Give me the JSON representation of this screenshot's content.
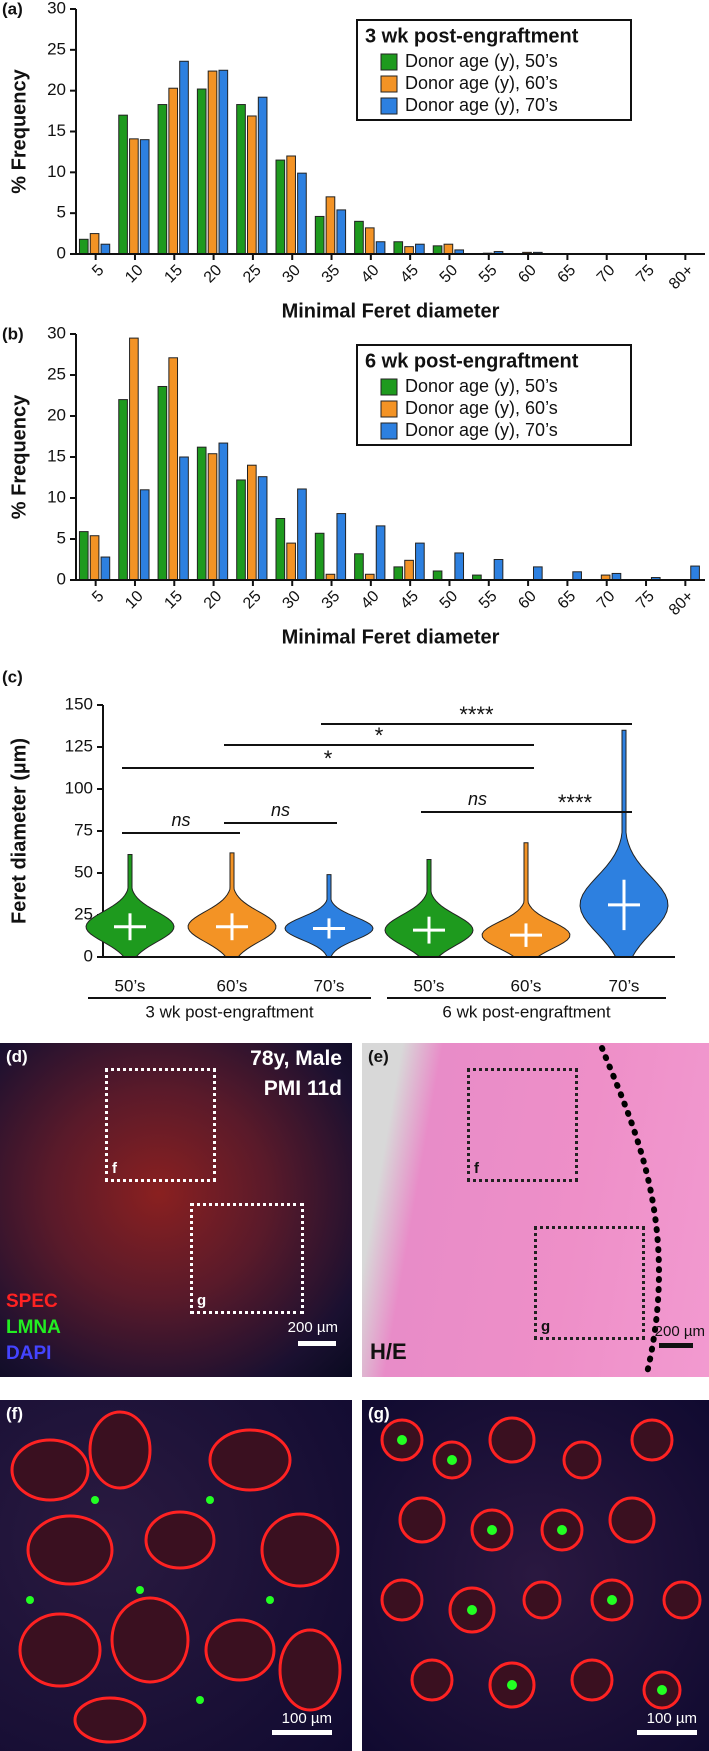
{
  "chart_data": [
    {
      "type": "bar",
      "panel": "(a)",
      "ylabel": "% Frequency",
      "xlabel": "Minimal Feret diameter",
      "legend_title": "3 wk post-engraftment",
      "categories": [
        "5",
        "10",
        "15",
        "20",
        "25",
        "30",
        "35",
        "40",
        "45",
        "50",
        "55",
        "60",
        "65",
        "70",
        "75",
        "80+"
      ],
      "series": [
        {
          "name": "Donor age (y), 50’s",
          "color": "#1e9a1e",
          "values": [
            1.8,
            17,
            18.3,
            20.2,
            18.3,
            11.5,
            4.6,
            4,
            1.5,
            1,
            0,
            0,
            0,
            0,
            0,
            0
          ]
        },
        {
          "name": "Donor age (y), 60’s",
          "color": "#f39325",
          "values": [
            2.5,
            14.1,
            20.3,
            22.4,
            16.9,
            12,
            7,
            3.2,
            0.9,
            1.2,
            0.1,
            0.2,
            0,
            0,
            0,
            0
          ]
        },
        {
          "name": "Donor age (y), 70’s",
          "color": "#2d80e0",
          "values": [
            1.2,
            14,
            23.6,
            22.5,
            19.2,
            9.9,
            5.4,
            1.5,
            1.2,
            0.5,
            0.3,
            0.2,
            0,
            0,
            0,
            0
          ]
        }
      ],
      "ylim": [
        0,
        30
      ],
      "yticks": [
        0,
        5,
        10,
        15,
        20,
        25,
        30
      ]
    },
    {
      "type": "bar",
      "panel": "(b)",
      "ylabel": "% Frequency",
      "xlabel": "Minimal Feret diameter",
      "legend_title": "6 wk post-engraftment",
      "categories": [
        "5",
        "10",
        "15",
        "20",
        "25",
        "30",
        "35",
        "40",
        "45",
        "50",
        "55",
        "60",
        "65",
        "70",
        "75",
        "80+"
      ],
      "series": [
        {
          "name": "Donor age (y), 50’s",
          "color": "#1e9a1e",
          "values": [
            5.9,
            22,
            23.6,
            16.2,
            12.2,
            7.5,
            5.7,
            3.2,
            1.6,
            1.1,
            0.6,
            0,
            0,
            0,
            0,
            0
          ]
        },
        {
          "name": "Donor age (y), 60’s",
          "color": "#f39325",
          "values": [
            5.4,
            29.5,
            27.1,
            15.4,
            14,
            4.5,
            0.7,
            0.7,
            2.4,
            0,
            0,
            0,
            0,
            0.6,
            0,
            0
          ]
        },
        {
          "name": "Donor age (y), 70’s",
          "color": "#2d80e0",
          "values": [
            2.8,
            11,
            15,
            16.7,
            12.6,
            11.1,
            8.1,
            6.6,
            4.5,
            3.3,
            2.5,
            1.6,
            1,
            0.8,
            0.3,
            1.7
          ]
        }
      ],
      "ylim": [
        0,
        30
      ],
      "yticks": [
        0,
        5,
        10,
        15,
        20,
        25,
        30
      ]
    },
    {
      "type": "dot",
      "panel": "(c)",
      "ylabel": "Feret diameter (µm)",
      "categories": [
        "50’s",
        "60’s",
        "70’s",
        "50’s",
        "60’s",
        "70’s"
      ],
      "group_labels": [
        "3 wk post-engraftment",
        "6 wk post-engraftment"
      ],
      "colors": [
        "#1e9a1e",
        "#f39325",
        "#2d80e0",
        "#1e9a1e",
        "#f39325",
        "#2d80e0"
      ],
      "mean": [
        18,
        18,
        17,
        16,
        13,
        31
      ],
      "sd": [
        8,
        8,
        6,
        8,
        7,
        15
      ],
      "max": [
        61,
        62,
        49,
        58,
        68,
        135
      ],
      "ylim": [
        0,
        150
      ],
      "yticks": [
        0,
        25,
        50,
        75,
        100,
        125,
        150
      ],
      "comparisons": [
        {
          "from": 0,
          "to": 1,
          "label": "ns"
        },
        {
          "from": 1,
          "to": 2,
          "label": "ns"
        },
        {
          "from": 3,
          "to": 4,
          "label": "ns"
        },
        {
          "from": 4,
          "to": 5,
          "label": "****"
        },
        {
          "from": 0,
          "to": 4,
          "label": "*"
        },
        {
          "from": 1,
          "to": 4,
          "label": "*"
        },
        {
          "from": 2,
          "to": 5,
          "label": "****"
        }
      ]
    }
  ],
  "images": [
    {
      "panel": "(d)",
      "labels": [
        "78y, Male",
        "PMI 11d"
      ],
      "stains": [
        "SPEC",
        "LMNA",
        "DAPI"
      ],
      "insets": [
        "f",
        "g"
      ],
      "scale_bar": "200 µm"
    },
    {
      "panel": "(e)",
      "stain": "H/E",
      "insets": [
        "f",
        "g"
      ],
      "scale_bar": "200 µm"
    },
    {
      "panel": "(f)",
      "scale_bar": "100 µm"
    },
    {
      "panel": "(g)",
      "scale_bar": "100 µm"
    }
  ]
}
